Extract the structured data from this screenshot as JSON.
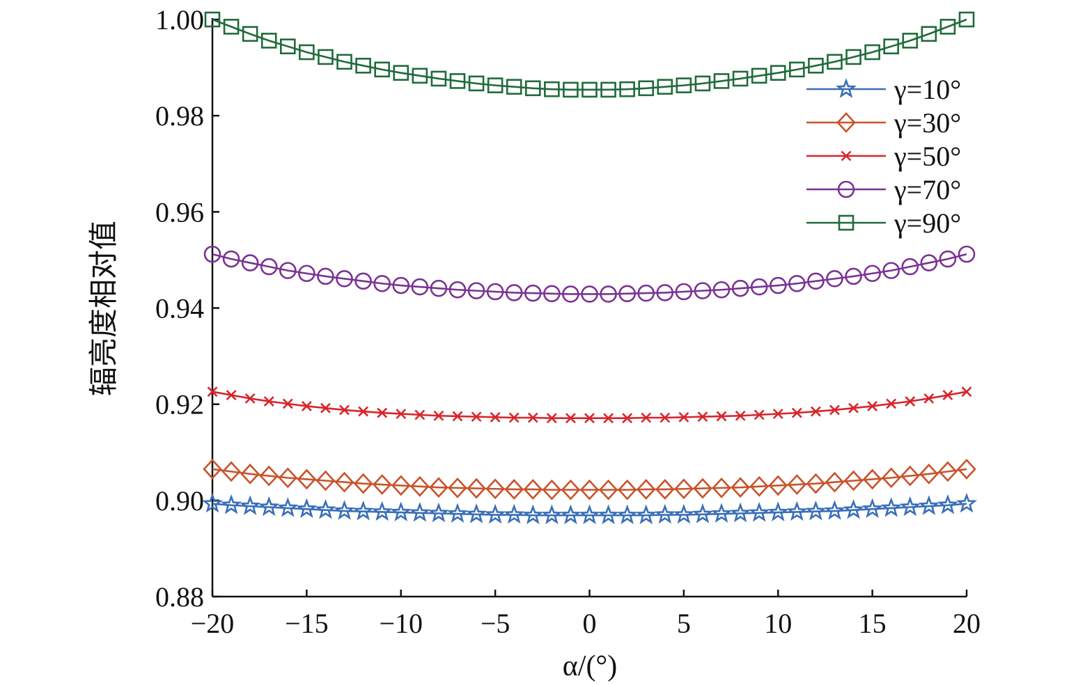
{
  "chart_data": {
    "type": "line",
    "title": "",
    "xlabel": "α/(°)",
    "ylabel": "辐亮度相对值",
    "xlim": [
      -20,
      20
    ],
    "ylim": [
      0.88,
      1.0
    ],
    "x_ticks": [
      -20,
      -15,
      -10,
      -5,
      0,
      5,
      10,
      15,
      20
    ],
    "x_tick_labels": [
      "−20",
      "−15",
      "−10",
      "−5",
      "0",
      "5",
      "10",
      "15",
      "20"
    ],
    "y_ticks": [
      0.88,
      0.9,
      0.92,
      0.94,
      0.96,
      0.98,
      1.0
    ],
    "y_tick_labels": [
      "0.88",
      "0.90",
      "0.92",
      "0.94",
      "0.96",
      "0.98",
      "1.00"
    ],
    "grid": false,
    "legend_position": "top-right",
    "x": [
      -20,
      -19,
      -18,
      -17,
      -16,
      -15,
      -14,
      -13,
      -12,
      -11,
      -10,
      -9,
      -8,
      -7,
      -6,
      -5,
      -4,
      -3,
      -2,
      -1,
      0,
      1,
      2,
      3,
      4,
      5,
      6,
      7,
      8,
      9,
      10,
      11,
      12,
      13,
      14,
      15,
      16,
      17,
      18,
      19,
      20
    ],
    "series": [
      {
        "name": "γ=10°",
        "color": "#3a6fb8",
        "marker": "star",
        "values": [
          0.8993,
          0.899,
          0.8988,
          0.8986,
          0.8984,
          0.8982,
          0.898,
          0.8978,
          0.8977,
          0.8976,
          0.8975,
          0.8974,
          0.8973,
          0.8972,
          0.8971,
          0.897,
          0.897,
          0.8969,
          0.8969,
          0.8969,
          0.8969,
          0.8969,
          0.8969,
          0.8969,
          0.897,
          0.897,
          0.8971,
          0.8972,
          0.8973,
          0.8974,
          0.8975,
          0.8976,
          0.8977,
          0.8978,
          0.898,
          0.8982,
          0.8984,
          0.8986,
          0.8988,
          0.899,
          0.8993
        ]
      },
      {
        "name": "γ=30°",
        "color": "#c9532b",
        "marker": "diamond",
        "values": [
          0.9065,
          0.906,
          0.9055,
          0.9051,
          0.9047,
          0.9044,
          0.9041,
          0.9038,
          0.9035,
          0.9033,
          0.9031,
          0.9029,
          0.9027,
          0.9026,
          0.9025,
          0.9024,
          0.9023,
          0.9023,
          0.9022,
          0.9022,
          0.9022,
          0.9022,
          0.9022,
          0.9023,
          0.9023,
          0.9024,
          0.9025,
          0.9026,
          0.9027,
          0.9029,
          0.9031,
          0.9033,
          0.9035,
          0.9038,
          0.9041,
          0.9044,
          0.9047,
          0.9051,
          0.9055,
          0.906,
          0.9065
        ]
      },
      {
        "name": "γ=50°",
        "color": "#d7262d",
        "marker": "x",
        "values": [
          0.9226,
          0.9219,
          0.9212,
          0.9206,
          0.9201,
          0.9196,
          0.9192,
          0.9188,
          0.9185,
          0.9182,
          0.918,
          0.9178,
          0.9176,
          0.9175,
          0.9174,
          0.9173,
          0.9172,
          0.9172,
          0.9171,
          0.9171,
          0.9171,
          0.9171,
          0.9171,
          0.9172,
          0.9172,
          0.9173,
          0.9174,
          0.9175,
          0.9176,
          0.9178,
          0.918,
          0.9182,
          0.9185,
          0.9188,
          0.9192,
          0.9196,
          0.9201,
          0.9206,
          0.9212,
          0.9219,
          0.9226
        ]
      },
      {
        "name": "γ=70°",
        "color": "#7b3294",
        "marker": "circle",
        "values": [
          0.9512,
          0.9502,
          0.9494,
          0.9486,
          0.9478,
          0.9472,
          0.9466,
          0.9461,
          0.9456,
          0.9451,
          0.9447,
          0.9444,
          0.9441,
          0.9438,
          0.9436,
          0.9434,
          0.9432,
          0.9431,
          0.943,
          0.9429,
          0.9429,
          0.9429,
          0.943,
          0.9431,
          0.9432,
          0.9434,
          0.9436,
          0.9438,
          0.9441,
          0.9444,
          0.9447,
          0.9451,
          0.9456,
          0.9461,
          0.9466,
          0.9472,
          0.9478,
          0.9486,
          0.9494,
          0.9502,
          0.9512
        ]
      },
      {
        "name": "γ=90°",
        "color": "#1f6b3a",
        "marker": "square",
        "values": [
          1.0,
          0.9985,
          0.997,
          0.9956,
          0.9944,
          0.9932,
          0.9922,
          0.9912,
          0.9904,
          0.9896,
          0.9889,
          0.9883,
          0.9877,
          0.9872,
          0.9867,
          0.9863,
          0.986,
          0.9857,
          0.9855,
          0.9854,
          0.9854,
          0.9854,
          0.9855,
          0.9857,
          0.986,
          0.9863,
          0.9867,
          0.9872,
          0.9877,
          0.9883,
          0.9889,
          0.9896,
          0.9904,
          0.9912,
          0.9922,
          0.9932,
          0.9944,
          0.9956,
          0.997,
          0.9985,
          1.0
        ]
      }
    ]
  }
}
